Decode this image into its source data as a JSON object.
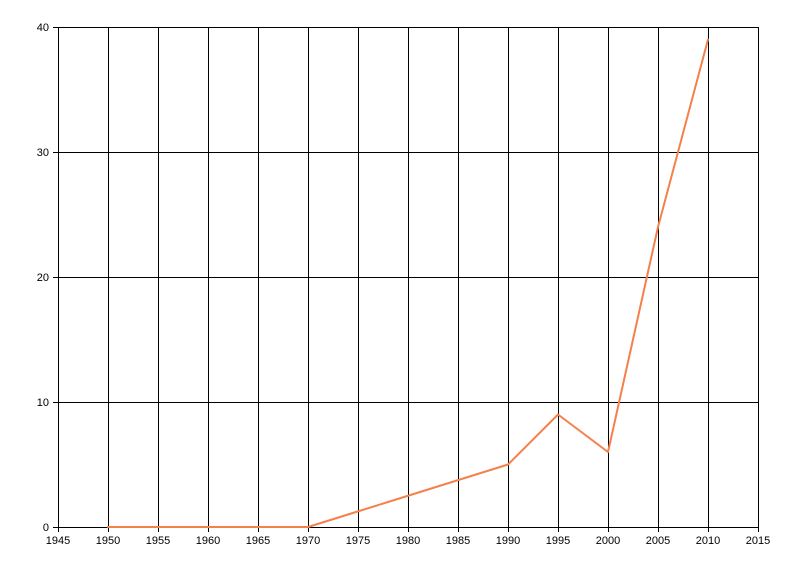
{
  "chart_data": {
    "type": "line",
    "title": "",
    "xlabel": "",
    "ylabel": "",
    "xlim": [
      1945,
      2015
    ],
    "ylim": [
      0,
      40
    ],
    "x_ticks": [
      1945,
      1950,
      1955,
      1960,
      1965,
      1970,
      1975,
      1980,
      1985,
      1990,
      1995,
      2000,
      2005,
      2010,
      2015
    ],
    "y_ticks": [
      0,
      10,
      20,
      30,
      40
    ],
    "grid": true,
    "legend": "none",
    "colors": {
      "series": "#f4804a",
      "grid": "#000000",
      "axis": "#000000",
      "background": "#ffffff"
    },
    "series": [
      {
        "x": [
          1950,
          1955,
          1960,
          1965,
          1970,
          1975,
          1980,
          1985,
          1990,
          1995,
          2000,
          2005,
          2010
        ],
        "values": [
          0,
          0,
          0,
          0,
          0,
          1.25,
          2.5,
          3.75,
          5,
          9,
          6,
          24,
          39
        ]
      }
    ]
  }
}
